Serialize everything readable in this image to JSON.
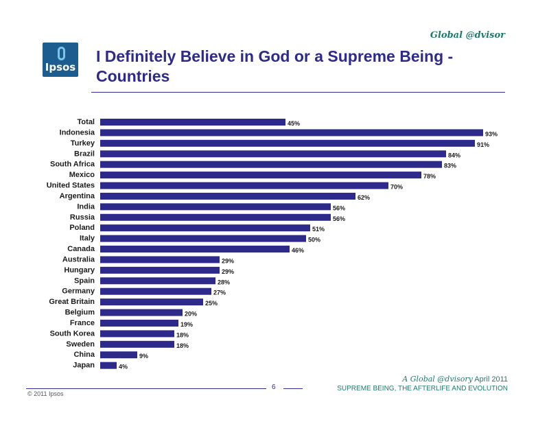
{
  "brand": "Global @dvisor",
  "logo_text": "Ipsos",
  "title": "I Definitely Believe in God or a Supreme Being - Countries",
  "footer": {
    "page_number": "6",
    "copyright": "© 2011 Ipsos",
    "line1_prefix": "A ",
    "line1_brand": "Global @dvisory",
    "line1_suffix": " April 2011",
    "line2": "SUPREME BEING, THE AFTERLIFE AND EVOLUTION"
  },
  "colors": {
    "bar": "#2d2a8b",
    "title": "#2d2a8b",
    "accent": "#1f7a6e"
  },
  "chart_data": {
    "type": "bar",
    "orientation": "horizontal",
    "categories": [
      "Total",
      "Indonesia",
      "Turkey",
      "Brazil",
      "South Africa",
      "Mexico",
      "United States",
      "Argentina",
      "India",
      "Russia",
      "Poland",
      "Italy",
      "Canada",
      "Australia",
      "Hungary",
      "Spain",
      "Germany",
      "Great Britain",
      "Belgium",
      "France",
      "South Korea",
      "Sweden",
      "China",
      "Japan"
    ],
    "values": [
      45,
      93,
      91,
      84,
      83,
      78,
      70,
      62,
      56,
      56,
      51,
      50,
      46,
      29,
      29,
      28,
      27,
      25,
      20,
      19,
      18,
      18,
      9,
      4
    ],
    "value_suffix": "%",
    "xlim": [
      0,
      100
    ],
    "grid": false
  }
}
